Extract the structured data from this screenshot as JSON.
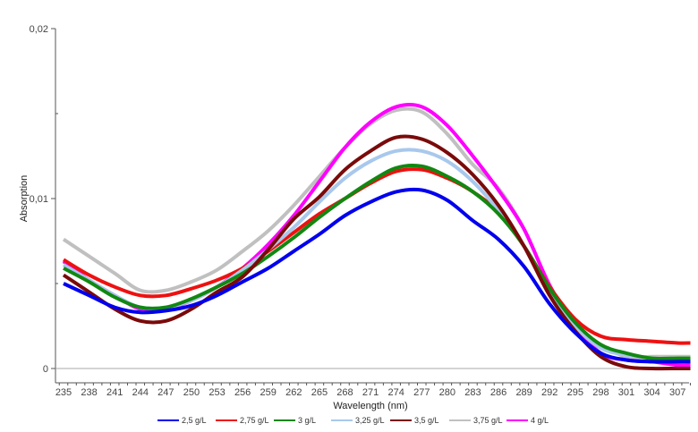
{
  "chart_data": {
    "type": "line",
    "title": "",
    "xlabel": "Wavelength (nm)",
    "ylabel": "Absorption",
    "xlim": [
      234.3,
      308.7
    ],
    "ylim": [
      -0.0008,
      0.02
    ],
    "yticks": [
      {
        "value": 0,
        "label": "0"
      },
      {
        "value": 0.01,
        "label": "0,01"
      },
      {
        "value": 0.02,
        "label": "0,02"
      }
    ],
    "xticks": [
      "235",
      "238",
      "241",
      "244",
      "247",
      "250",
      "253",
      "256",
      "259",
      "262",
      "265",
      "268",
      "271",
      "274",
      "277",
      "280",
      "283",
      "286",
      "289",
      "292",
      "295",
      "298",
      "301",
      "304",
      "307"
    ],
    "legend_position": "bottom",
    "grid": false,
    "x": [
      235,
      238,
      241,
      244,
      247,
      250,
      253,
      256,
      259,
      262,
      265,
      268,
      271,
      274,
      277,
      280,
      283,
      286,
      289,
      292,
      295,
      298,
      301,
      304,
      307,
      308.5
    ],
    "series": [
      {
        "name": "2,5 g/L",
        "color": "#0000ee",
        "values": [
          0.005,
          0.0043,
          0.0036,
          0.0033,
          0.0034,
          0.0037,
          0.0043,
          0.0051,
          0.0059,
          0.0069,
          0.0079,
          0.009,
          0.0098,
          0.0104,
          0.0105,
          0.0099,
          0.0087,
          0.0076,
          0.006,
          0.0038,
          0.0021,
          0.0009,
          0.0005,
          0.0004,
          0.0004,
          0.0004
        ]
      },
      {
        "name": "2,75 g/L",
        "color": "#ee1111",
        "values": [
          0.0064,
          0.0055,
          0.0048,
          0.0043,
          0.0043,
          0.0047,
          0.0052,
          0.0059,
          0.0069,
          0.008,
          0.0091,
          0.01,
          0.0109,
          0.0116,
          0.0117,
          0.0112,
          0.0104,
          0.0092,
          0.0072,
          0.0048,
          0.0029,
          0.0019,
          0.0017,
          0.0016,
          0.0015,
          0.0015
        ]
      },
      {
        "name": "3 g/L",
        "color": "#118811",
        "values": [
          0.0059,
          0.0051,
          0.0042,
          0.0036,
          0.0036,
          0.0041,
          0.0048,
          0.0056,
          0.0066,
          0.0077,
          0.0089,
          0.01,
          0.011,
          0.0118,
          0.0119,
          0.0113,
          0.0104,
          0.0091,
          0.0072,
          0.0047,
          0.0027,
          0.0014,
          0.0009,
          0.0006,
          0.0006,
          0.0006
        ]
      },
      {
        "name": "3,25 g/L",
        "color": "#a8c8ec",
        "values": [
          0.0061,
          0.0052,
          0.0043,
          0.0036,
          0.0036,
          0.004,
          0.0048,
          0.0058,
          0.007,
          0.0083,
          0.0098,
          0.0112,
          0.0122,
          0.0128,
          0.0128,
          0.0122,
          0.011,
          0.0093,
          0.0072,
          0.0046,
          0.0025,
          0.0012,
          0.0008,
          0.0006,
          0.0005,
          0.0005
        ]
      },
      {
        "name": "3,5 g/L",
        "color": "#7a0a0a",
        "values": [
          0.0055,
          0.0045,
          0.0035,
          0.0028,
          0.0028,
          0.0035,
          0.0045,
          0.0054,
          0.007,
          0.0088,
          0.0101,
          0.0117,
          0.0128,
          0.0136,
          0.0135,
          0.0127,
          0.0114,
          0.0096,
          0.0072,
          0.0043,
          0.0022,
          0.0007,
          0.0001,
          0.0,
          0.0,
          0.0
        ]
      },
      {
        "name": "3,75 g/L",
        "color": "#c0c0c0",
        "values": [
          0.0076,
          0.0066,
          0.0056,
          0.0046,
          0.0046,
          0.0051,
          0.0058,
          0.0069,
          0.0081,
          0.0096,
          0.0113,
          0.013,
          0.0144,
          0.0152,
          0.0151,
          0.0138,
          0.012,
          0.0106,
          0.0082,
          0.0049,
          0.0026,
          0.0014,
          0.0007,
          0.0007,
          0.0007,
          0.0007
        ]
      },
      {
        "name": "4 g/L",
        "color": "#ff00ff",
        "values": [
          0.0063,
          0.0052,
          0.0043,
          0.0035,
          0.0035,
          0.004,
          0.0048,
          0.0059,
          0.0073,
          0.009,
          0.011,
          0.013,
          0.0145,
          0.0154,
          0.0154,
          0.0143,
          0.0125,
          0.0105,
          0.0082,
          0.0049,
          0.0025,
          0.0009,
          0.0005,
          0.0004,
          0.0002,
          0.0002
        ]
      }
    ]
  }
}
